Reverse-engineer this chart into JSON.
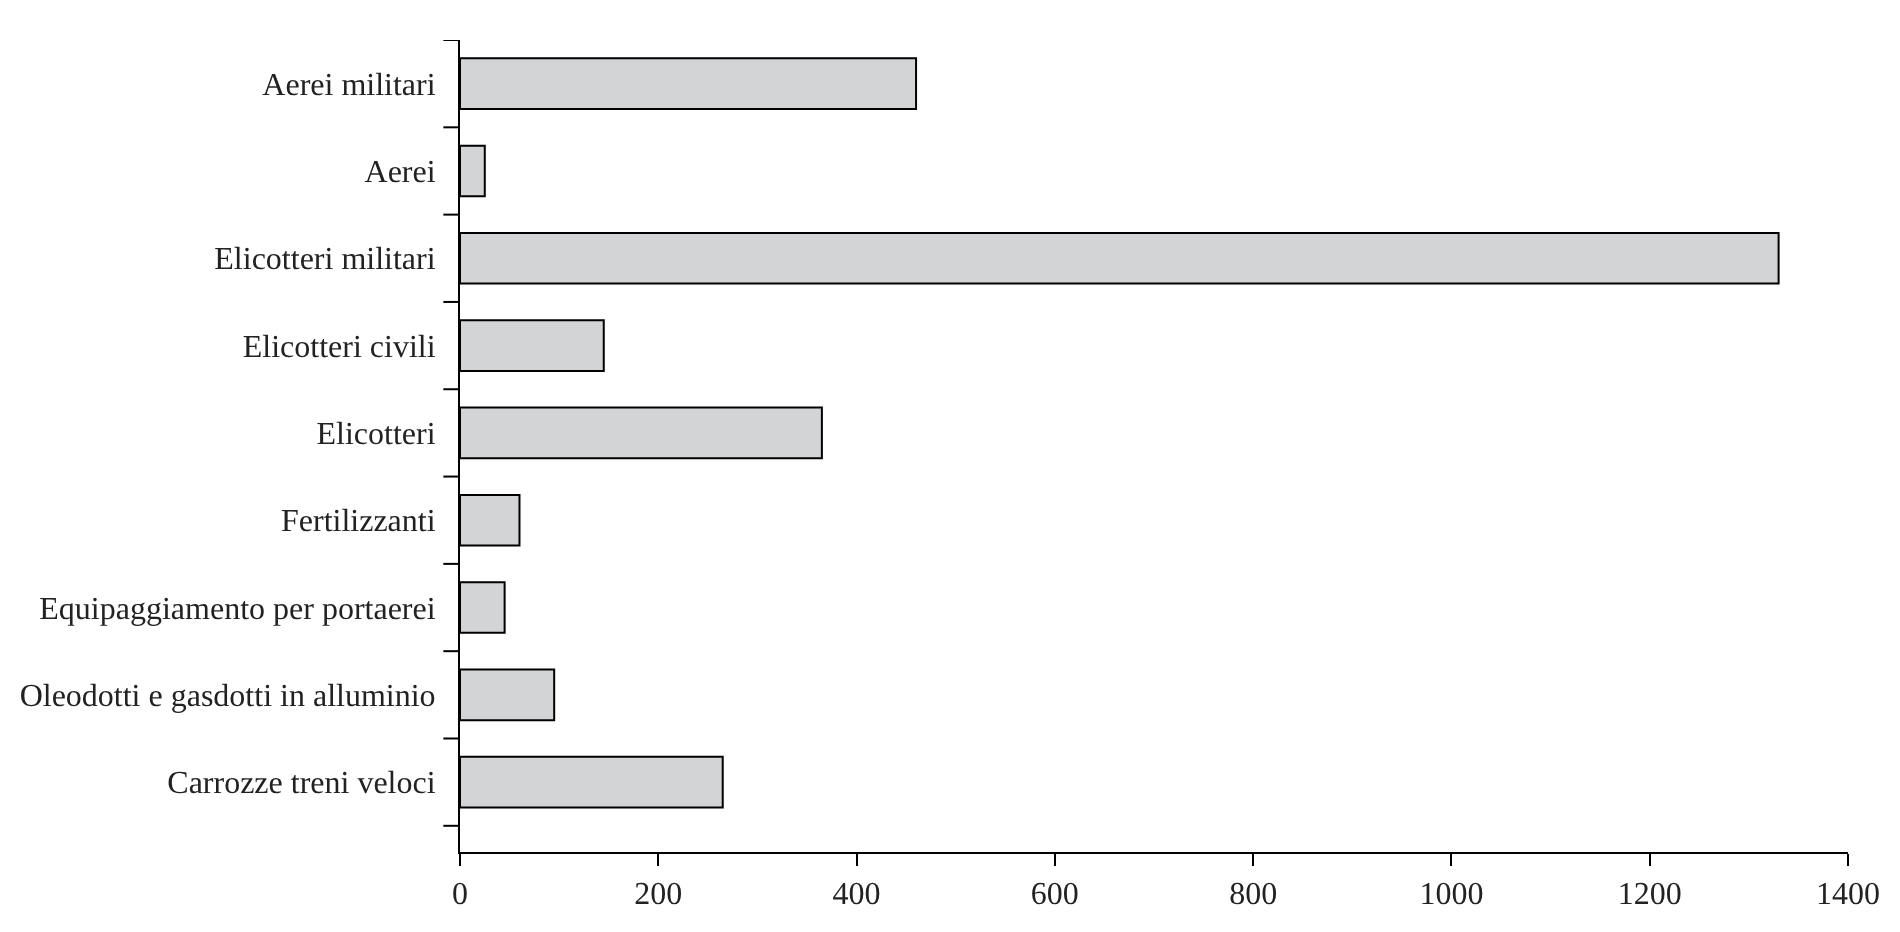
{
  "chart_data": {
    "type": "bar",
    "orientation": "horizontal",
    "categories": [
      "Aerei militari",
      "Aerei",
      "Elicotteri militari",
      "Elicotteri civili",
      "Elicotteri",
      "Fertilizzanti",
      "Equipaggiamento per portaerei",
      "Oleodotti e gasdotti in alluminio",
      "Carrozze treni veloci"
    ],
    "values": [
      460,
      25,
      1330,
      145,
      365,
      60,
      45,
      95,
      265
    ],
    "color": "#d3d4d6",
    "xlim": [
      0,
      1400
    ],
    "xticks": [
      0,
      200,
      400,
      600,
      800,
      1000,
      1200,
      1400
    ],
    "grid": false
  }
}
